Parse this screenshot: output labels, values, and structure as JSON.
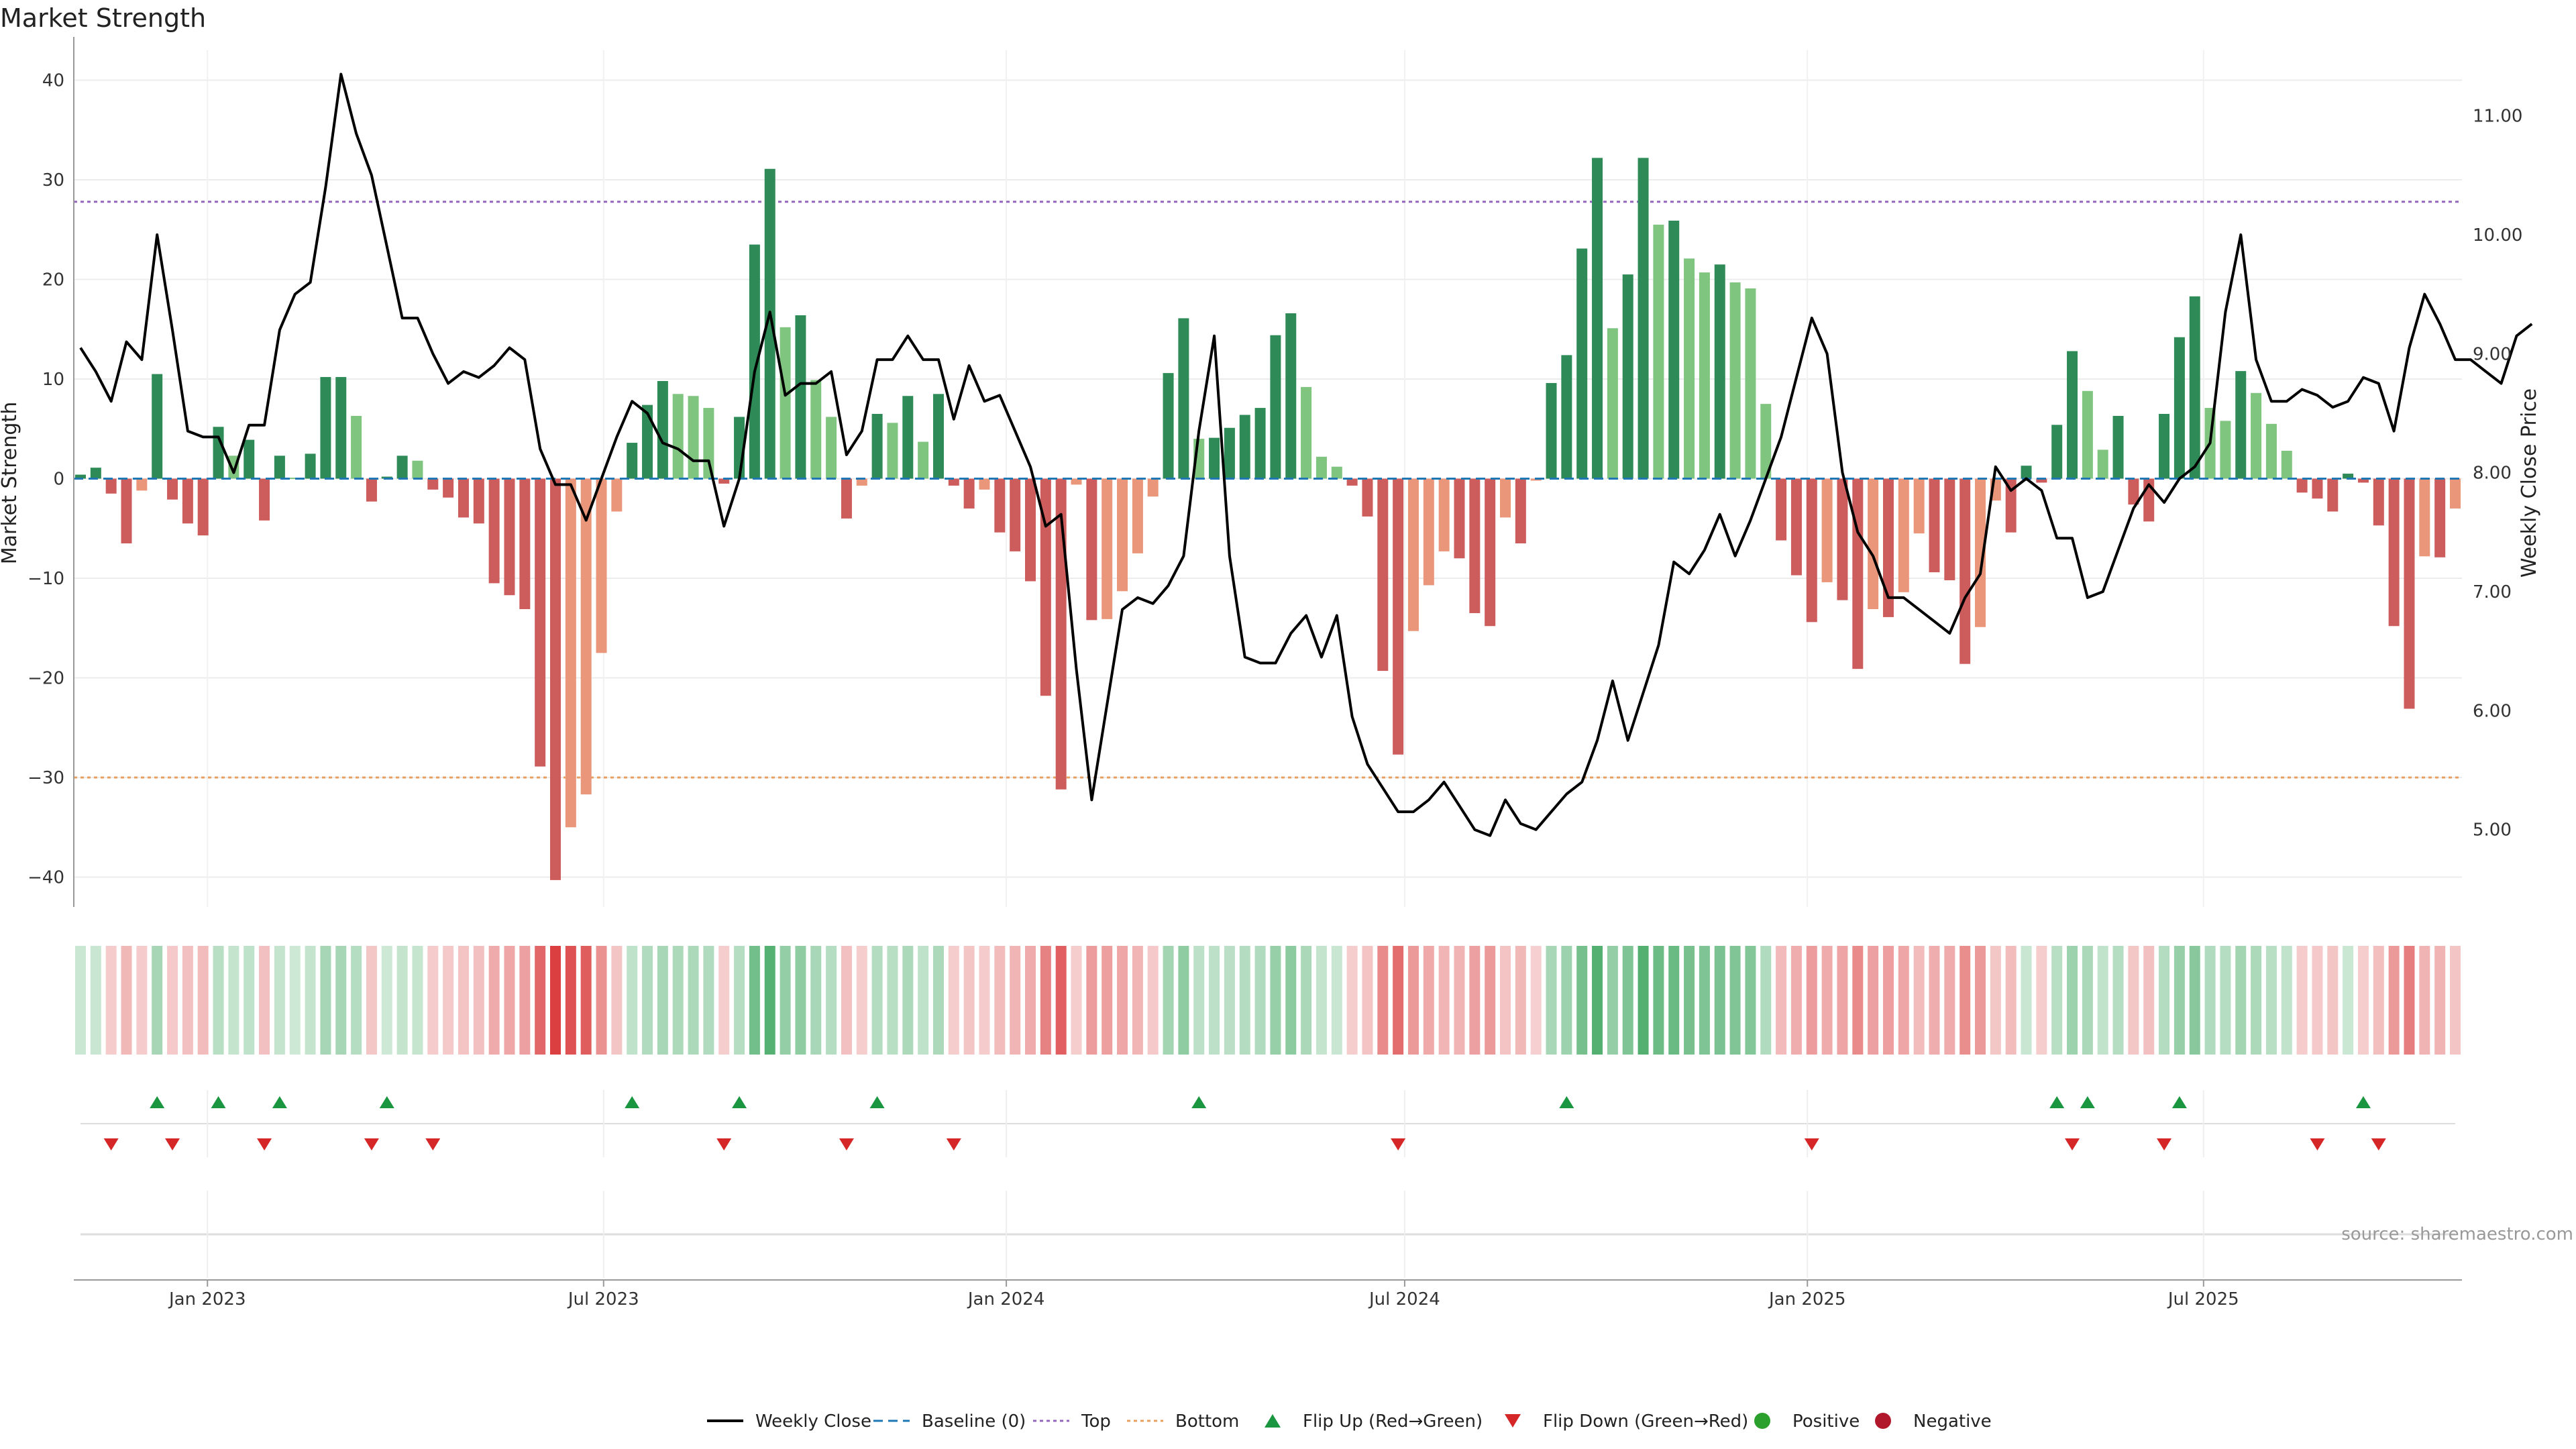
{
  "chart_data": {
    "type": "bar",
    "title": "Market Strength",
    "ylabel_left": "Market Strength",
    "ylabel_right": "Weekly Close Price",
    "ylim_left": [
      -43,
      43
    ],
    "ylim_right": [
      4.35,
      11.55
    ],
    "yticks_left": [
      40,
      30,
      20,
      10,
      0,
      -10,
      -20,
      -30,
      -40
    ],
    "yticks_left_labels": [
      "40",
      "30",
      "20",
      "10",
      "0",
      "−10",
      "−20",
      "−30",
      "−40"
    ],
    "yticks_right": [
      11,
      10,
      9,
      8,
      7,
      6,
      5
    ],
    "yticks_right_labels": [
      "11.00",
      "10.00",
      "9.00",
      "8.00",
      "7.00",
      "6.00",
      "5.00"
    ],
    "x_start": "2022-11-04",
    "xticks": [
      {
        "date": "2023-01-01",
        "label": "Jan 2023"
      },
      {
        "date": "2023-07-01",
        "label": "Jul 2023"
      },
      {
        "date": "2024-01-01",
        "label": "Jan 2024"
      },
      {
        "date": "2024-07-01",
        "label": "Jul 2024"
      },
      {
        "date": "2025-01-01",
        "label": "Jan 2025"
      },
      {
        "date": "2025-07-01",
        "label": "Jul 2025"
      }
    ],
    "top_threshold": 27.8,
    "bottom_threshold": -30,
    "grid": true,
    "legend_position": "bottom",
    "strength": [
      0.4,
      1.1,
      -1.5,
      -6.5,
      -1.2,
      10.5,
      -2.1,
      -4.5,
      -5.7,
      5.2,
      2.3,
      3.9,
      -4.2,
      2.3,
      0.1,
      2.5,
      10.2,
      10.2,
      6.3,
      -2.3,
      0.2,
      2.3,
      1.8,
      -1.1,
      -1.9,
      -3.9,
      -4.5,
      -10.5,
      -11.7,
      -13.1,
      -28.9,
      -40.3,
      -35,
      -31.7,
      -17.5,
      -3.3,
      3.6,
      7.4,
      9.8,
      8.5,
      8.3,
      7.1,
      -0.5,
      6.2,
      23.5,
      31.1,
      15.2,
      16.4,
      9.9,
      6.2,
      -4,
      -0.7,
      6.5,
      5.6,
      8.3,
      3.7,
      8.5,
      -0.7,
      -3,
      -1.1,
      -5.4,
      -7.3,
      -10.3,
      -21.8,
      -31.2,
      -0.6,
      -14.2,
      -14.1,
      -11.3,
      -7.5,
      -1.8,
      10.6,
      16.1,
      4,
      4.1,
      5.1,
      6.4,
      7.1,
      14.4,
      16.6,
      9.2,
      2.2,
      1.2,
      -0.7,
      -3.8,
      -19.3,
      -27.7,
      -15.3,
      -10.7,
      -7.3,
      -8,
      -13.5,
      -14.8,
      -3.9,
      -6.5,
      -0.2,
      9.6,
      12.4,
      23.1,
      32.2,
      15.1,
      20.5,
      32.2,
      25.5,
      25.9,
      22.1,
      20.7,
      21.5,
      19.7,
      19.1,
      7.5,
      -6.2,
      -9.7,
      -14.4,
      -10.4,
      -12.2,
      -19.1,
      -13.1,
      -13.9,
      -11.4,
      -5.5,
      -9.4,
      -10.2,
      -18.6,
      -14.9,
      -2.2,
      -5.4,
      1.3,
      -0.4,
      5.4,
      12.8,
      8.8,
      2.9,
      6.3,
      -2.6,
      -4.3,
      6.5,
      14.2,
      18.3,
      7.1,
      5.8,
      10.8,
      8.6,
      5.5,
      2.8,
      -1.4,
      -2,
      -3.3,
      0.5,
      -0.4,
      -4.7,
      -14.8,
      -23.1,
      -7.8,
      -7.9,
      -3
    ]
  },
  "strips": {
    "flip_up_indices": [
      5,
      9,
      13,
      20,
      36,
      43,
      52,
      73,
      97,
      129,
      131,
      137,
      149
    ],
    "flip_down_indices": [
      2,
      6,
      12,
      19,
      23,
      42,
      50,
      57,
      86,
      113,
      130,
      136,
      146,
      150
    ]
  },
  "legend": [
    {
      "label": "Weekly Close",
      "icon": "line-icon"
    },
    {
      "label": "Baseline (0)",
      "icon": "dashed-line-icon"
    },
    {
      "label": "Top",
      "icon": "dotted-line-icon"
    },
    {
      "label": "Bottom",
      "icon": "dotted-line-icon"
    },
    {
      "label": "Flip Up (Red→Green)",
      "icon": "triangle-up-icon"
    },
    {
      "label": "Flip Down (Green→Red)",
      "icon": "triangle-down-icon"
    },
    {
      "label": "Positive",
      "icon": "circle-icon"
    },
    {
      "label": "Negative",
      "icon": "circle-icon"
    }
  ],
  "source": "source: sharemaestro.com",
  "colors": {
    "bar_green_dark": "#2e8b57",
    "bar_green_light": "#7fc47f",
    "bar_red_dark": "#cd5c5c",
    "bar_red_light": "#e9967a",
    "flip_up": "#1a9641",
    "flip_down": "#d62728",
    "top_line": "#9467bd",
    "bottom_line": "#e8a060",
    "baseline": "#1f77b4",
    "price_line": "#000000",
    "positive": "#2ca02c",
    "negative": "#b2182b"
  }
}
